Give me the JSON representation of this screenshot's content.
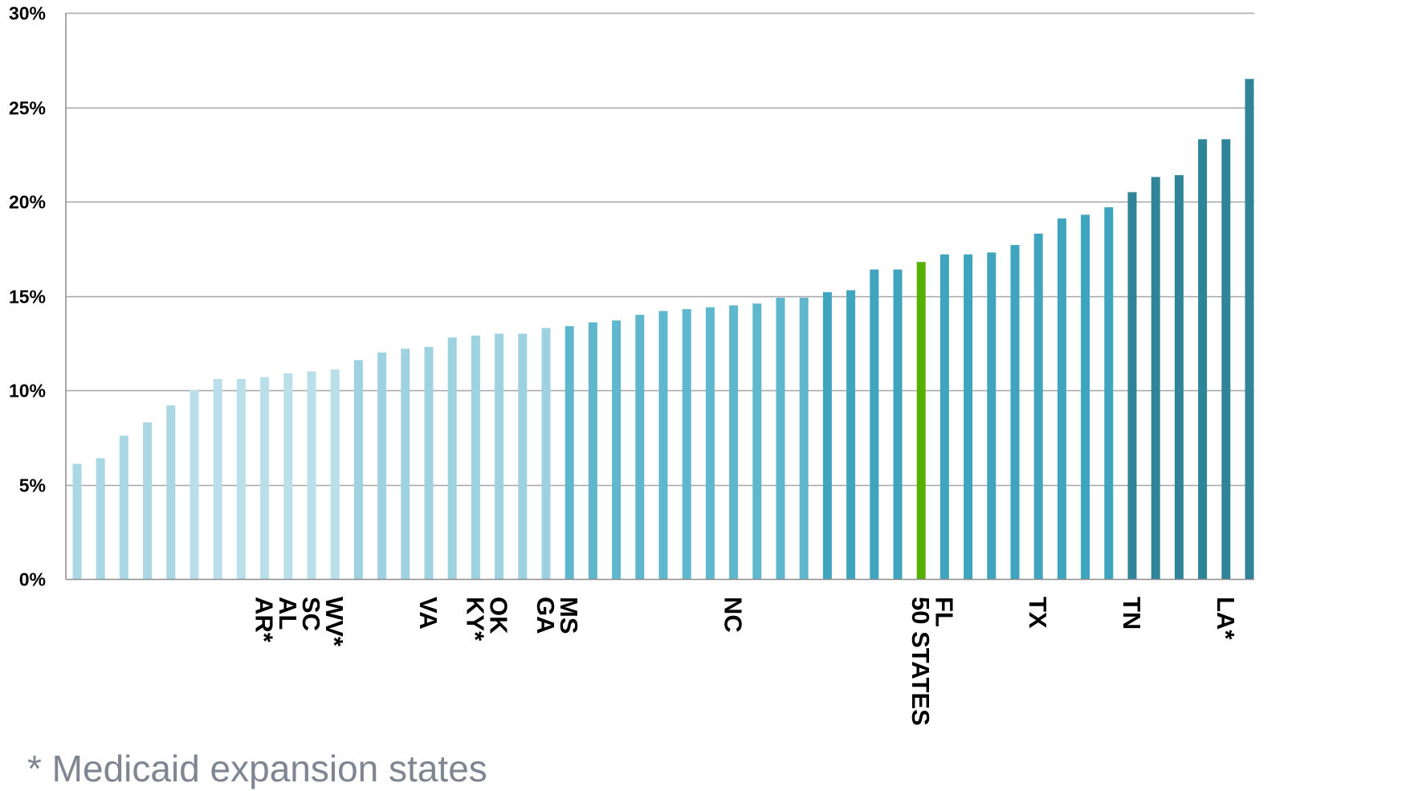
{
  "chart_data": {
    "type": "bar",
    "ylim": [
      0,
      30
    ],
    "yticks": [
      "0%",
      "5%",
      "10%",
      "15%",
      "20%",
      "25%",
      "30%"
    ],
    "ytick_values": [
      0,
      5,
      10,
      15,
      20,
      25,
      30
    ],
    "grid": true,
    "values": [
      6.1,
      6.4,
      7.6,
      8.3,
      9.2,
      10.0,
      10.6,
      10.6,
      10.7,
      10.9,
      11.0,
      11.1,
      11.6,
      12.0,
      12.2,
      12.3,
      12.8,
      12.9,
      13.0,
      13.0,
      13.3,
      13.4,
      13.6,
      13.7,
      14.0,
      14.2,
      14.3,
      14.4,
      14.5,
      14.6,
      14.9,
      14.9,
      15.2,
      15.3,
      16.4,
      16.4,
      16.8,
      17.2,
      17.2,
      17.3,
      17.7,
      18.3,
      19.1,
      19.3,
      19.7,
      20.5,
      21.3,
      21.4,
      23.3,
      23.3,
      26.5
    ],
    "labels": [
      "",
      "",
      "",
      "",
      "",
      "",
      "",
      "",
      "AR*",
      "AL",
      "SC",
      "WV*",
      "",
      "",
      "",
      "VA",
      "",
      "KY*",
      "OK",
      "",
      "GA",
      "MS",
      "",
      "",
      "",
      "",
      "",
      "",
      "NC",
      "",
      "",
      "",
      "",
      "",
      "",
      "",
      "50 STATES",
      "FL",
      "",
      "",
      "",
      "TX",
      "",
      "",
      "",
      "TN",
      "",
      "",
      "",
      "LA*",
      ""
    ],
    "colors": [
      "#a9d7e4",
      "#a9d7e4",
      "#a9d7e4",
      "#a9d7e4",
      "#a9d7e4",
      "#b9e0ea",
      "#b9e0ea",
      "#b9e0ea",
      "#b9e0ea",
      "#b9e0ea",
      "#b9e0ea",
      "#b9e0ea",
      "#9fd2e0",
      "#9fd2e0",
      "#9fd2e0",
      "#9fd2e0",
      "#9fd2e0",
      "#9fd2e0",
      "#9fd2e0",
      "#9fd2e0",
      "#9fd2e0",
      "#5eb7cc",
      "#5eb7cc",
      "#5eb7cc",
      "#5eb7cc",
      "#5eb7cc",
      "#5eb7cc",
      "#5eb7cc",
      "#5eb7cc",
      "#5eb7cc",
      "#5eb7cc",
      "#5eb7cc",
      "#3fa4be",
      "#3fa4be",
      "#3fa4be",
      "#3fa4be",
      "#56b000",
      "#3fa4be",
      "#3fa4be",
      "#3fa4be",
      "#3fa4be",
      "#3fa4be",
      "#3fa4be",
      "#3fa4be",
      "#3fa4be",
      "#2f8499",
      "#2f8499",
      "#2f8499",
      "#2f8499",
      "#2f8499",
      "#2f8499"
    ],
    "highlight_color": "#56b000",
    "gridline_color": "#a6a6a6",
    "axis_color": "#8c8c8c"
  },
  "footnote": "* Medicaid expansion states"
}
